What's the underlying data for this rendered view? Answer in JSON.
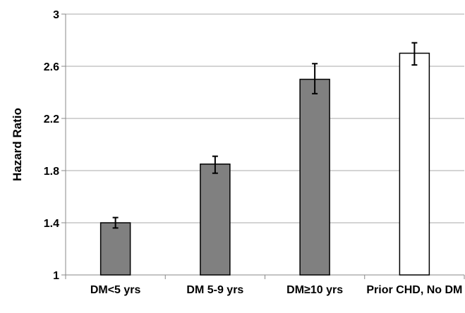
{
  "chart_data": {
    "type": "bar",
    "title": "",
    "xlabel": "",
    "ylabel": "Hazard Ratio",
    "ylim": [
      1,
      3
    ],
    "yticks": [
      "1",
      "1.4",
      "1.8",
      "2.2",
      "2.6",
      "3"
    ],
    "grid": true,
    "legend": "none",
    "categories": [
      "DM<5 yrs",
      "DM 5-9 yrs",
      "DM≥10 yrs",
      "Prior CHD, No DM"
    ],
    "values": [
      1.4,
      1.85,
      2.5,
      2.7
    ],
    "error_low": [
      1.36,
      1.78,
      2.39,
      2.61
    ],
    "error_high": [
      1.44,
      1.91,
      2.62,
      2.78
    ],
    "bar_colors": [
      "#808080",
      "#808080",
      "#808080",
      "#ffffff"
    ],
    "bar_edge_color": "#000000",
    "grid_color": "#aaaaaa"
  }
}
